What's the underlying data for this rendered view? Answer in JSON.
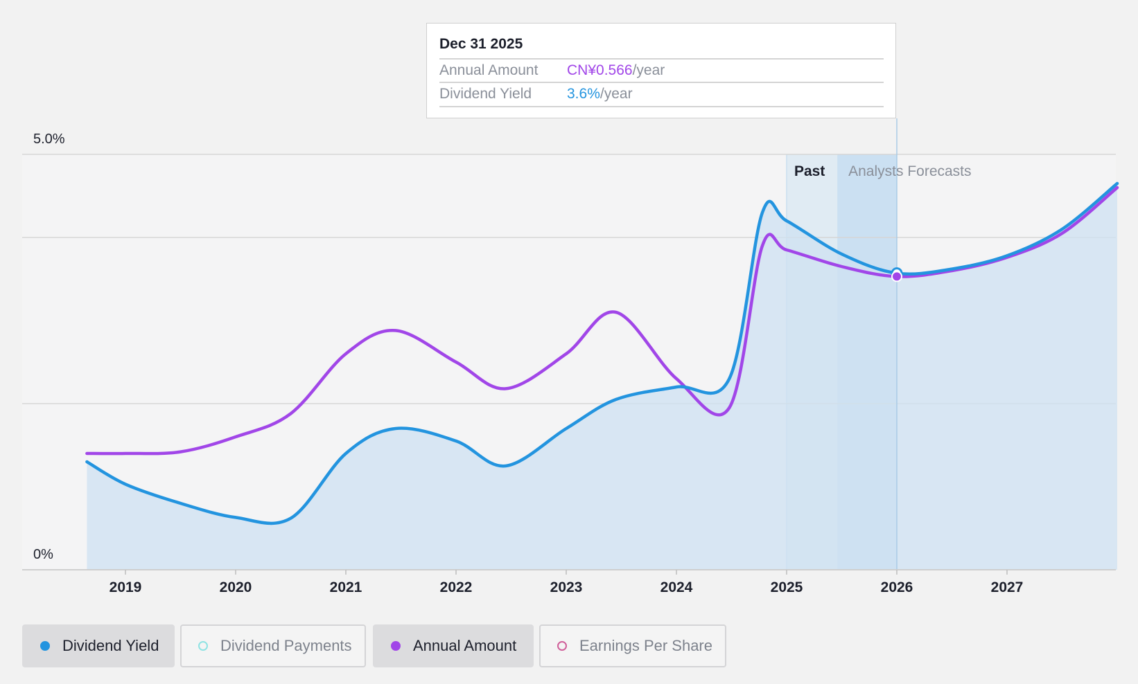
{
  "tooltip": {
    "date": "Dec 31 2025",
    "annual_amount_label": "Annual Amount",
    "annual_amount_value": "CN¥0.566",
    "annual_amount_unit": "/year",
    "dividend_yield_label": "Dividend Yield",
    "dividend_yield_value": "3.6%",
    "dividend_yield_unit": "/year"
  },
  "legend": [
    {
      "label": "Dividend Yield",
      "active": true,
      "color": "#2394df",
      "filled": true
    },
    {
      "label": "Dividend Payments",
      "active": false,
      "color": "#8fe3e3",
      "filled": false
    },
    {
      "label": "Annual Amount",
      "active": true,
      "color": "#a146e8",
      "filled": true
    },
    {
      "label": "Earnings Per Share",
      "active": false,
      "color": "#d0609a",
      "filled": false
    }
  ],
  "colors": {
    "dividend_yield": "#2394df",
    "annual_amount": "#a146e8",
    "area_fill": "#cfe2f1",
    "past_band": "#b9d9f1",
    "forecast_band": "#a9d0ef",
    "grid": "#d6d6d6"
  },
  "chart_data": {
    "type": "line",
    "x_ticks": [
      2019,
      2020,
      2021,
      2022,
      2023,
      2024,
      2025,
      2026,
      2027
    ],
    "x_range": [
      2018.25,
      2028.0
    ],
    "y_range": [
      0,
      5.0
    ],
    "y_tick_labels": [
      {
        "value": 5.0,
        "label": "5.0%"
      },
      {
        "value": 0,
        "label": "0%"
      }
    ],
    "gridlines": [
      5.0,
      4.0,
      2.0
    ],
    "regions": {
      "past_label": "Past",
      "forecast_label": "Analysts Forecasts",
      "past_start": 2025.0,
      "forecast_start": 2025.46,
      "cursor_x": 2026.0
    },
    "series": [
      {
        "name": "Dividend Yield",
        "unit": "%",
        "x": [
          2018.65,
          2019.0,
          2019.5,
          2020.0,
          2020.5,
          2021.0,
          2021.45,
          2022.0,
          2022.45,
          2023.0,
          2023.45,
          2024.0,
          2024.48,
          2024.78,
          2025.0,
          2025.5,
          2026.0,
          2026.5,
          2027.0,
          2027.5,
          2028.0
        ],
        "y": [
          1.3,
          1.03,
          0.8,
          0.63,
          0.62,
          1.4,
          1.7,
          1.55,
          1.25,
          1.7,
          2.05,
          2.2,
          2.3,
          4.3,
          4.2,
          3.8,
          3.57,
          3.62,
          3.78,
          4.1,
          4.65
        ]
      },
      {
        "name": "Annual Amount",
        "unit": "CN¥",
        "x": [
          2018.65,
          2019.0,
          2019.5,
          2020.0,
          2020.5,
          2021.0,
          2021.45,
          2022.0,
          2022.45,
          2023.0,
          2023.45,
          2024.0,
          2024.48,
          2024.78,
          2025.0,
          2025.5,
          2026.0,
          2026.5,
          2027.0,
          2027.5,
          2028.0
        ],
        "y": [
          1.4,
          1.4,
          1.42,
          1.6,
          1.88,
          2.6,
          2.88,
          2.5,
          2.18,
          2.6,
          3.1,
          2.3,
          1.95,
          3.9,
          3.85,
          3.65,
          3.53,
          3.6,
          3.76,
          4.05,
          4.6
        ]
      }
    ],
    "highlight": {
      "x": 2026.0,
      "dividend_yield": 3.6,
      "annual_amount": 0.566
    }
  }
}
